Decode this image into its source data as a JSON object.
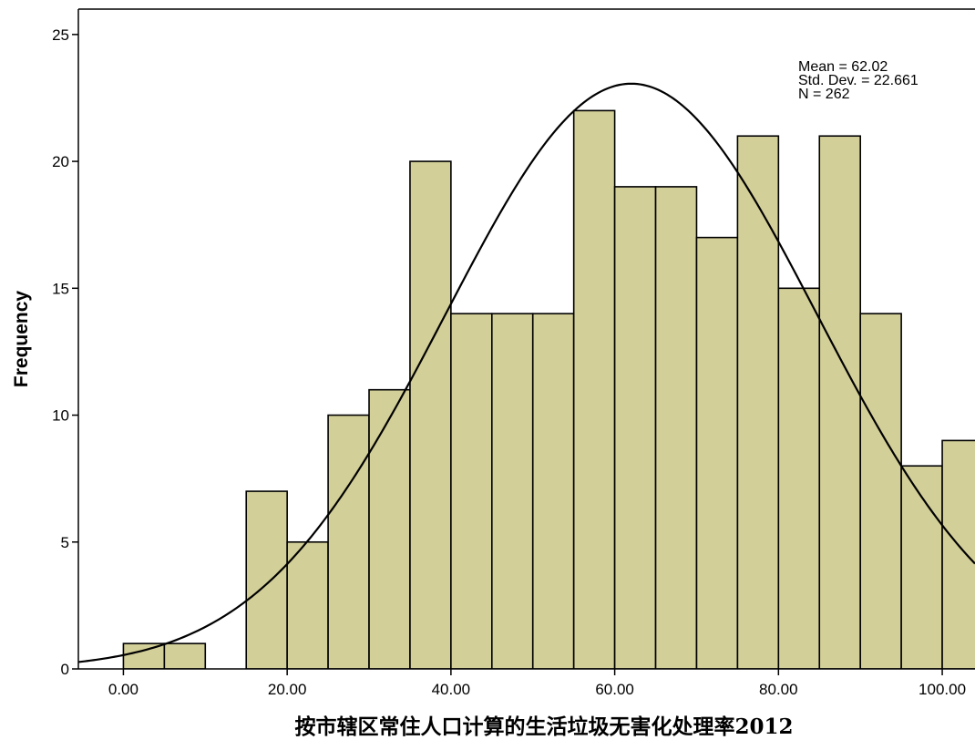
{
  "chart_data": {
    "type": "bar",
    "subtype": "histogram",
    "xlabel": "按市辖区常住人口计算的生活垃圾无害化处理率2012",
    "ylabel": "Frequency",
    "xlim": [
      -5.5,
      104
    ],
    "ylim": [
      0,
      26
    ],
    "x_ticks": [
      0,
      20,
      40,
      60,
      80,
      100
    ],
    "x_tick_labels": [
      "0.00",
      "20.00",
      "40.00",
      "60.00",
      "80.00",
      "100.00"
    ],
    "y_ticks": [
      0,
      5,
      10,
      15,
      20,
      25
    ],
    "y_tick_labels": [
      "0",
      "5",
      "10",
      "15",
      "20",
      "25"
    ],
    "bin_width": 5,
    "bins": [
      {
        "start": 0,
        "end": 5,
        "count": 1
      },
      {
        "start": 5,
        "end": 10,
        "count": 1
      },
      {
        "start": 10,
        "end": 15,
        "count": 0
      },
      {
        "start": 15,
        "end": 20,
        "count": 7
      },
      {
        "start": 20,
        "end": 25,
        "count": 5
      },
      {
        "start": 25,
        "end": 30,
        "count": 10
      },
      {
        "start": 30,
        "end": 35,
        "count": 11
      },
      {
        "start": 35,
        "end": 40,
        "count": 20
      },
      {
        "start": 40,
        "end": 45,
        "count": 14
      },
      {
        "start": 45,
        "end": 50,
        "count": 14
      },
      {
        "start": 50,
        "end": 55,
        "count": 14
      },
      {
        "start": 55,
        "end": 60,
        "count": 22
      },
      {
        "start": 60,
        "end": 65,
        "count": 19
      },
      {
        "start": 65,
        "end": 70,
        "count": 19
      },
      {
        "start": 70,
        "end": 75,
        "count": 17
      },
      {
        "start": 75,
        "end": 80,
        "count": 21
      },
      {
        "start": 80,
        "end": 85,
        "count": 15
      },
      {
        "start": 85,
        "end": 90,
        "count": 21
      },
      {
        "start": 90,
        "end": 95,
        "count": 14
      },
      {
        "start": 95,
        "end": 100,
        "count": 8
      },
      {
        "start": 100,
        "end": 105,
        "count": 9
      }
    ],
    "normal_curve": {
      "mean": 62.02,
      "std_dev": 22.661,
      "n": 262
    },
    "stats_text": [
      "Mean = 62.02",
      "Std. Dev. = 22.661",
      "N = 262"
    ],
    "grid": false,
    "bar_color": "#d3cf98",
    "bar_edge_color": "#000000",
    "curve_color": "#000000"
  }
}
